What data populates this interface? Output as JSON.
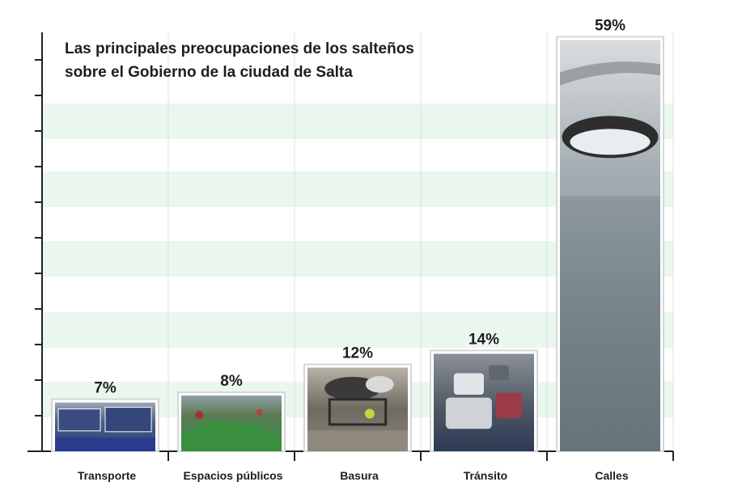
{
  "chart_data": {
    "type": "bar",
    "title_lines": [
      "Las principales preocupaciones de los salteños",
      "sobre el Gobierno de la ciudad de Salta"
    ],
    "categories": [
      "Transporte",
      "Espacios públicos",
      "Basura",
      "Tránsito",
      "Calles"
    ],
    "values": [
      7,
      8,
      12,
      14,
      59
    ],
    "value_labels": [
      "7%",
      "8%",
      "12%",
      "14%",
      "59%"
    ],
    "ylim": [
      0,
      60
    ],
    "grid": "horizontal bands",
    "bar_images": [
      "buses",
      "public-space",
      "garbage-cart",
      "traffic",
      "pothole"
    ],
    "colors": {
      "band": "#e9f7ee",
      "axis": "#222222",
      "frame": "#d6d6d6",
      "grid_vertical": "#e0e0e0",
      "text": "#1e1e1e"
    }
  }
}
